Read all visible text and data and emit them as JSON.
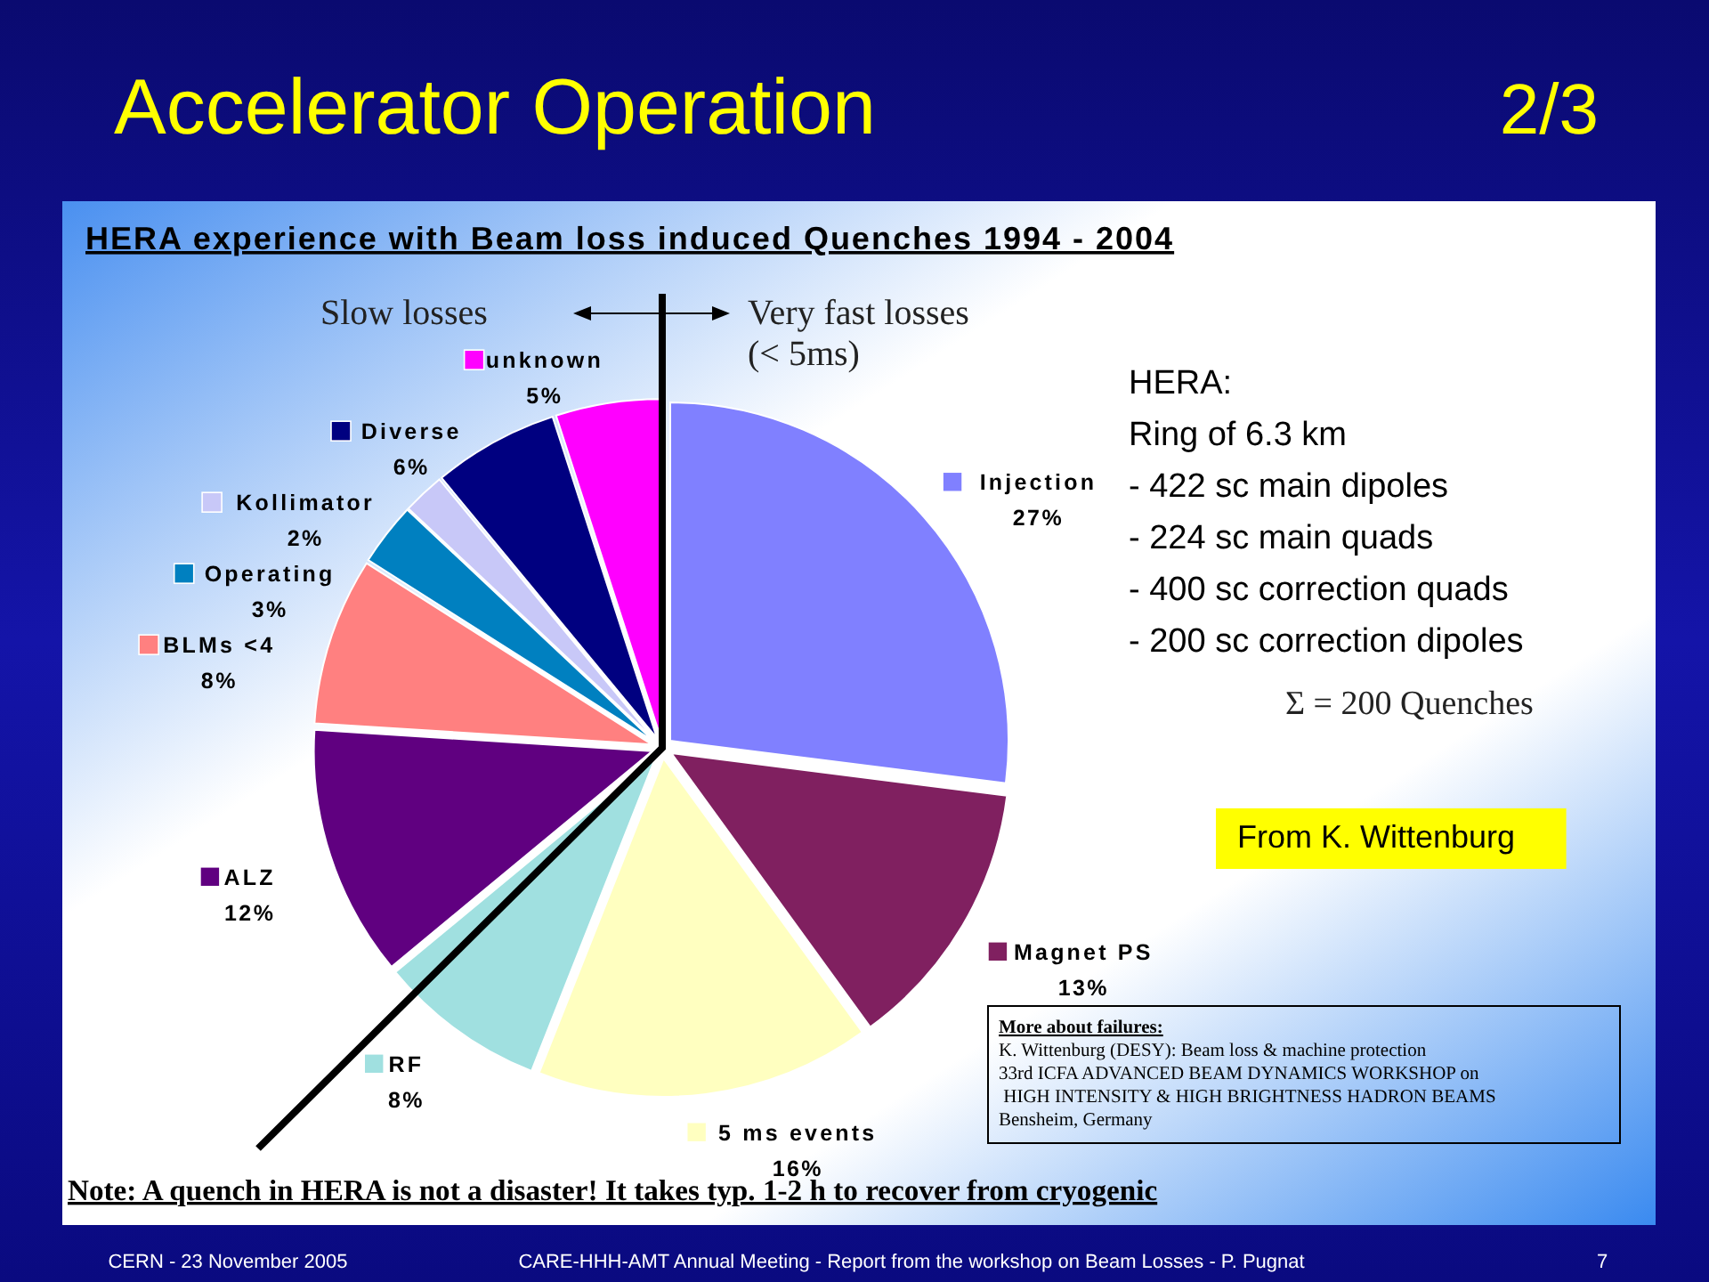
{
  "chart_data": {
    "type": "pie",
    "title": "Accelerator Operation",
    "subtitle": "HERA experience with Beam loss induced Quenches 1994 - 2004",
    "categories": [
      "Injection",
      "Magnet PS",
      "5 ms events",
      "RF",
      "ALZ",
      "BLMs <4",
      "Operating",
      "Kollimator",
      "Diverse",
      "unknown"
    ],
    "values": [
      27,
      13,
      16,
      8,
      12,
      8,
      3,
      2,
      6,
      5
    ],
    "value_labels": [
      "27%",
      "13%",
      "16%",
      "8%",
      "12%",
      "8%",
      "3%",
      "2%",
      "6%",
      "5%"
    ],
    "colors": [
      "#8080ff",
      "#802060",
      "#ffffc0",
      "#a0e0e0",
      "#600080",
      "#ff8080",
      "#0080c0",
      "#c8c8f8",
      "#000080",
      "#ff00ff"
    ],
    "legend": "left",
    "annotations": [
      "Slow losses",
      "Very fast losses\n(< 5ms)",
      "HERA:\nRing of 6.3 km\n- 422 sc main dipoles\n- 224 sc main quads\n- 400 sc correction quads\n- 200 sc correction dipoles",
      "Σ = 200 Quenches",
      "From K. Wittenburg",
      "More about failures:\nK. Wittenburg (DESY): Beam loss & machine protection\n33rd ICFA ADVANCED BEAM DYNAMICS WORKSHOP on\n HIGH INTENSITY & HIGH BRIGHTNESS HADRON BEAMS\nBensheim, Germany",
      "Note: A quench in HERA is not a disaster! It takes typ. 1-2 h to recover from cryogenic",
      "CERN - 23 November 2005",
      "CARE-HHH-AMT Annual Meeting - Report from the workshop on Beam Losses - P. Pugnat",
      "7",
      "2/3"
    ]
  }
}
